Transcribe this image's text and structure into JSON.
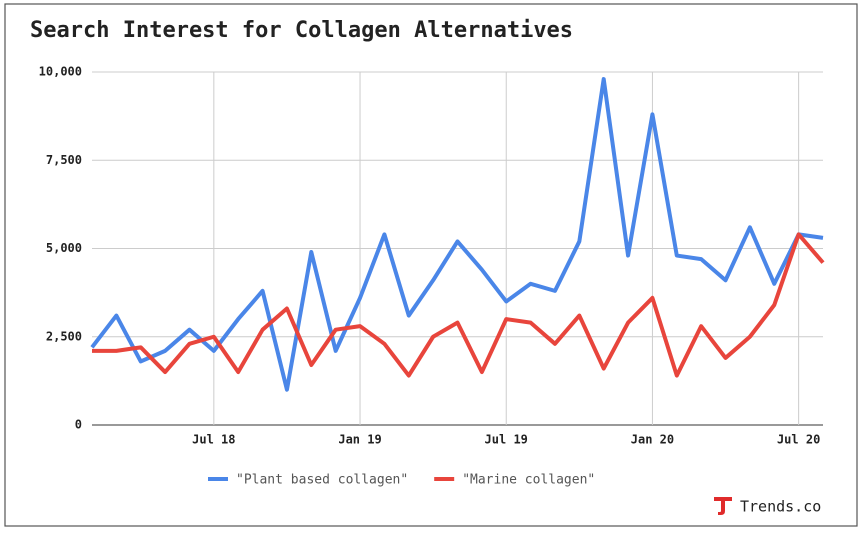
{
  "chart_data": {
    "type": "line",
    "title": "Search Interest for Collagen Alternatives",
    "categories": [
      null,
      null,
      null,
      null,
      null,
      "Jul 18",
      null,
      null,
      null,
      null,
      null,
      "Jan 19",
      null,
      null,
      null,
      null,
      null,
      "Jul 19",
      null,
      null,
      null,
      null,
      null,
      "Jan 20",
      null,
      null,
      null,
      null,
      null,
      "Jul 20",
      null
    ],
    "series": [
      {
        "name": "\"Plant based collagen\"",
        "color": "#4a86e8",
        "values": [
          2200,
          3100,
          1800,
          2100,
          2700,
          2100,
          3000,
          3800,
          1000,
          4900,
          2100,
          3600,
          5400,
          3100,
          4100,
          5200,
          4400,
          3500,
          4000,
          3800,
          5200,
          9800,
          4800,
          8800,
          4800,
          4700,
          4100,
          5600,
          4000,
          5400,
          5300
        ]
      },
      {
        "name": "\"Marine collagen\"",
        "color": "#e8453c",
        "values": [
          2100,
          2100,
          2200,
          1500,
          2300,
          2500,
          1500,
          2700,
          3300,
          1700,
          2700,
          2800,
          2300,
          1400,
          2500,
          2900,
          1500,
          3000,
          2900,
          2300,
          3100,
          1600,
          2900,
          3600,
          1400,
          2800,
          1900,
          2500,
          3400,
          5400,
          4600
        ]
      }
    ],
    "ylim": [
      0,
      10000
    ],
    "yticks": [
      0,
      {
        "value": 2500,
        "label": "2,500"
      },
      {
        "value": 5000,
        "label": "5,000"
      },
      {
        "value": 7500,
        "label": "7,500"
      },
      {
        "value": 10000,
        "label": "10,000"
      }
    ],
    "grid": true,
    "legend": "bottom",
    "source": "Trends.co"
  }
}
